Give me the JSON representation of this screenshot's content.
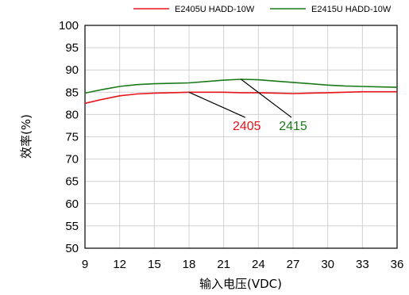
{
  "chart_data": {
    "type": "line",
    "xlabel": "输入电压(VDC)",
    "ylabel": "效率(%)",
    "xlim": [
      9,
      36
    ],
    "ylim": [
      50,
      100
    ],
    "x_ticks": [
      9,
      12,
      15,
      18,
      21,
      24,
      27,
      30,
      33,
      36
    ],
    "y_ticks": [
      50,
      55,
      60,
      65,
      70,
      75,
      80,
      85,
      90,
      95,
      100
    ],
    "grid": true,
    "legend_position": "top-right",
    "series": [
      {
        "name": "E2405U HADD-10W",
        "color": "#e8141b",
        "x": [
          9,
          10.5,
          12,
          13.5,
          15,
          16.5,
          18,
          19.5,
          21,
          22.5,
          24,
          25.5,
          27,
          28.5,
          30,
          31.5,
          33,
          34.5,
          36
        ],
        "y": [
          82.5,
          83.4,
          84.2,
          84.6,
          84.8,
          84.9,
          85.0,
          85.0,
          85.0,
          84.9,
          84.9,
          84.8,
          84.7,
          84.8,
          84.9,
          85.0,
          85.1,
          85.1,
          85.1
        ]
      },
      {
        "name": "E2415U HADD-10W",
        "color": "#1a7a1a",
        "x": [
          9,
          10.5,
          12,
          13.5,
          15,
          16.5,
          18,
          19.5,
          21,
          22.5,
          24,
          25.5,
          27,
          28.5,
          30,
          31.5,
          33,
          34.5,
          36
        ],
        "y": [
          84.8,
          85.6,
          86.3,
          86.7,
          86.9,
          87.0,
          87.1,
          87.4,
          87.7,
          87.9,
          87.8,
          87.5,
          87.2,
          86.9,
          86.6,
          86.4,
          86.3,
          86.2,
          86.1
        ]
      }
    ],
    "annotations": [
      {
        "text": "2405",
        "color": "#e8141b",
        "x_point": 18,
        "y_point": 85.0,
        "x_text": 23,
        "y_text": 76.5
      },
      {
        "text": "2415",
        "color": "#1a7a1a",
        "x_point": 22.5,
        "y_point": 87.9,
        "x_text": 27,
        "y_text": 76.5
      }
    ]
  }
}
